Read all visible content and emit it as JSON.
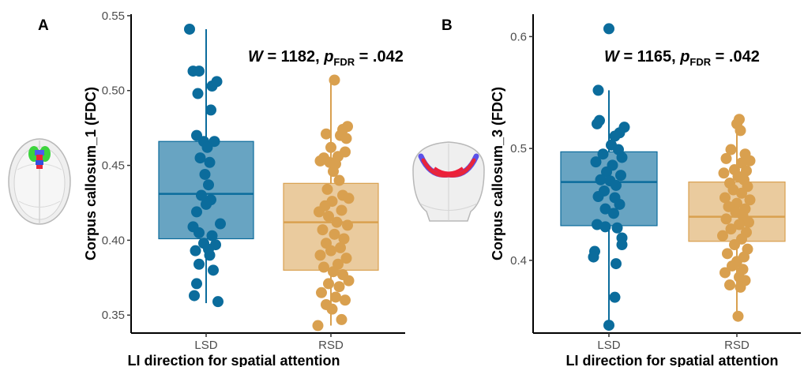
{
  "chart_data": [
    {
      "panel": "A",
      "type": "box",
      "ylabel": "Corpus callosum_1 (FDC)",
      "xlabel": "LI direction for spatial attention",
      "ylim": [
        0.338,
        0.551
      ],
      "yticks": [
        0.35,
        0.4,
        0.45,
        0.5,
        0.55
      ],
      "ytick_labels": [
        "0.35",
        "0.40",
        "0.45",
        "0.50",
        "0.55"
      ],
      "categories": [
        "LSD",
        "RSD"
      ],
      "stat": {
        "W_label": "W",
        "W_value": " = 1182, ",
        "p_label": "p",
        "p_sub": "FDR",
        "p_value": " = .042"
      },
      "series": [
        {
          "category": "LSD",
          "color": "#0b6c9c",
          "box": {
            "whisker_low": 0.358,
            "q1": 0.401,
            "median": 0.431,
            "q3": 0.466,
            "whisker_high": 0.541
          },
          "points": [
            [
              -0.14,
              0.541
            ],
            [
              -0.11,
              0.513
            ],
            [
              -0.06,
              0.513
            ],
            [
              0.05,
              0.503
            ],
            [
              0.09,
              0.506
            ],
            [
              -0.07,
              0.498
            ],
            [
              0.04,
              0.487
            ],
            [
              -0.08,
              0.47
            ],
            [
              -0.02,
              0.466
            ],
            [
              0.07,
              0.466
            ],
            [
              0.01,
              0.462
            ],
            [
              -0.05,
              0.455
            ],
            [
              0.03,
              0.452
            ],
            [
              -0.01,
              0.444
            ],
            [
              0.02,
              0.437
            ],
            [
              -0.04,
              0.43
            ],
            [
              0.04,
              0.427
            ],
            [
              0.0,
              0.424
            ],
            [
              -0.08,
              0.419
            ],
            [
              0.12,
              0.411
            ],
            [
              -0.11,
              0.409
            ],
            [
              -0.06,
              0.405
            ],
            [
              0.05,
              0.403
            ],
            [
              0.08,
              0.397
            ],
            [
              -0.02,
              0.398
            ],
            [
              0.02,
              0.394
            ],
            [
              -0.09,
              0.393
            ],
            [
              0.03,
              0.39
            ],
            [
              -0.06,
              0.384
            ],
            [
              0.06,
              0.38
            ],
            [
              -0.08,
              0.371
            ],
            [
              -0.1,
              0.363
            ],
            [
              0.1,
              0.359
            ]
          ]
        },
        {
          "category": "RSD",
          "color": "#d9a04f",
          "box": {
            "whisker_low": 0.343,
            "q1": 0.38,
            "median": 0.412,
            "q3": 0.438,
            "whisker_high": 0.507
          },
          "points": [
            [
              0.03,
              0.507
            ],
            [
              0.14,
              0.476
            ],
            [
              0.1,
              0.474
            ],
            [
              0.08,
              0.47
            ],
            [
              0.13,
              0.468
            ],
            [
              -0.04,
              0.471
            ],
            [
              0.0,
              0.462
            ],
            [
              0.12,
              0.459
            ],
            [
              -0.06,
              0.455
            ],
            [
              0.06,
              0.456
            ],
            [
              -0.01,
              0.452
            ],
            [
              0.04,
              0.451
            ],
            [
              -0.09,
              0.453
            ],
            [
              0.02,
              0.446
            ],
            [
              0.07,
              0.44
            ],
            [
              -0.03,
              0.434
            ],
            [
              0.1,
              0.43
            ],
            [
              0.15,
              0.428
            ],
            [
              0.01,
              0.426
            ],
            [
              -0.05,
              0.423
            ],
            [
              0.09,
              0.42
            ],
            [
              -0.1,
              0.419
            ],
            [
              -0.02,
              0.416
            ],
            [
              0.05,
              0.412
            ],
            [
              0.14,
              0.41
            ],
            [
              -0.07,
              0.407
            ],
            [
              0.03,
              0.404
            ],
            [
              0.11,
              0.401
            ],
            [
              -0.04,
              0.398
            ],
            [
              0.08,
              0.395
            ],
            [
              0.0,
              0.393
            ],
            [
              -0.09,
              0.39
            ],
            [
              0.13,
              0.388
            ],
            [
              0.06,
              0.384
            ],
            [
              -0.06,
              0.382
            ],
            [
              0.02,
              0.379
            ],
            [
              0.1,
              0.377
            ],
            [
              0.15,
              0.373
            ],
            [
              -0.02,
              0.371
            ],
            [
              0.07,
              0.369
            ],
            [
              -0.08,
              0.365
            ],
            [
              0.04,
              0.362
            ],
            [
              0.12,
              0.36
            ],
            [
              -0.04,
              0.357
            ],
            [
              0.01,
              0.354
            ],
            [
              0.09,
              0.347
            ],
            [
              -0.11,
              0.343
            ]
          ]
        }
      ]
    },
    {
      "panel": "B",
      "type": "box",
      "ylabel": "Corpus callosum_3 (FDC)",
      "xlabel": "LI direction for spatial attention",
      "ylim": [
        0.335,
        0.62
      ],
      "yticks": [
        0.4,
        0.5,
        0.6
      ],
      "ytick_labels": [
        "0.4",
        "0.5",
        "0.6"
      ],
      "categories": [
        "LSD",
        "RSD"
      ],
      "stat": {
        "W_label": "W",
        "W_value": " = 1165, ",
        "p_label": "p",
        "p_sub": "FDR",
        "p_value": " = .042"
      },
      "series": [
        {
          "category": "LSD",
          "color": "#0b6c9c",
          "box": {
            "whisker_low": 0.342,
            "q1": 0.431,
            "median": 0.47,
            "q3": 0.497,
            "whisker_high": 0.552
          },
          "points": [
            [
              0.0,
              0.607
            ],
            [
              -0.09,
              0.552
            ],
            [
              -0.08,
              0.525
            ],
            [
              -0.1,
              0.522
            ],
            [
              0.13,
              0.519
            ],
            [
              0.09,
              0.514
            ],
            [
              0.05,
              0.511
            ],
            [
              0.02,
              0.503
            ],
            [
              0.08,
              0.499
            ],
            [
              -0.05,
              0.495
            ],
            [
              0.11,
              0.492
            ],
            [
              -0.11,
              0.488
            ],
            [
              0.03,
              0.485
            ],
            [
              -0.02,
              0.479
            ],
            [
              0.1,
              0.476
            ],
            [
              -0.07,
              0.472
            ],
            [
              0.01,
              0.471
            ],
            [
              0.06,
              0.467
            ],
            [
              -0.04,
              0.462
            ],
            [
              -0.09,
              0.457
            ],
            [
              0.05,
              0.456
            ],
            [
              0.09,
              0.45
            ],
            [
              -0.03,
              0.446
            ],
            [
              0.04,
              0.442
            ],
            [
              -0.1,
              0.432
            ],
            [
              -0.03,
              0.43
            ],
            [
              0.07,
              0.429
            ],
            [
              0.11,
              0.42
            ],
            [
              0.11,
              0.414
            ],
            [
              -0.12,
              0.408
            ],
            [
              -0.13,
              0.403
            ],
            [
              0.06,
              0.397
            ],
            [
              0.05,
              0.367
            ],
            [
              0.0,
              0.342
            ]
          ]
        },
        {
          "category": "RSD",
          "color": "#d9a04f",
          "box": {
            "whisker_low": 0.35,
            "q1": 0.417,
            "median": 0.439,
            "q3": 0.47,
            "whisker_high": 0.526
          },
          "points": [
            [
              0.02,
              0.526
            ],
            [
              0.0,
              0.522
            ],
            [
              0.03,
              0.516
            ],
            [
              -0.05,
              0.499
            ],
            [
              0.07,
              0.495
            ],
            [
              -0.09,
              0.491
            ],
            [
              0.11,
              0.489
            ],
            [
              0.04,
              0.487
            ],
            [
              -0.02,
              0.481
            ],
            [
              0.08,
              0.48
            ],
            [
              -0.11,
              0.478
            ],
            [
              0.01,
              0.475
            ],
            [
              0.06,
              0.472
            ],
            [
              -0.06,
              0.469
            ],
            [
              0.09,
              0.466
            ],
            [
              -0.03,
              0.463
            ],
            [
              0.04,
              0.46
            ],
            [
              -0.1,
              0.456
            ],
            [
              0.11,
              0.454
            ],
            [
              0.0,
              0.451
            ],
            [
              -0.07,
              0.448
            ],
            [
              0.07,
              0.446
            ],
            [
              -0.01,
              0.443
            ],
            [
              0.05,
              0.44
            ],
            [
              -0.09,
              0.437
            ],
            [
              0.1,
              0.434
            ],
            [
              0.02,
              0.432
            ],
            [
              -0.05,
              0.428
            ],
            [
              0.08,
              0.425
            ],
            [
              -0.12,
              0.422
            ],
            [
              0.04,
              0.419
            ],
            [
              -0.02,
              0.414
            ],
            [
              0.09,
              0.41
            ],
            [
              -0.08,
              0.406
            ],
            [
              0.06,
              0.403
            ],
            [
              0.0,
              0.399
            ],
            [
              -0.04,
              0.395
            ],
            [
              0.05,
              0.392
            ],
            [
              -0.1,
              0.389
            ],
            [
              0.02,
              0.385
            ],
            [
              0.07,
              0.382
            ],
            [
              -0.06,
              0.378
            ],
            [
              0.03,
              0.376
            ],
            [
              0.01,
              0.35
            ]
          ]
        }
      ]
    }
  ]
}
